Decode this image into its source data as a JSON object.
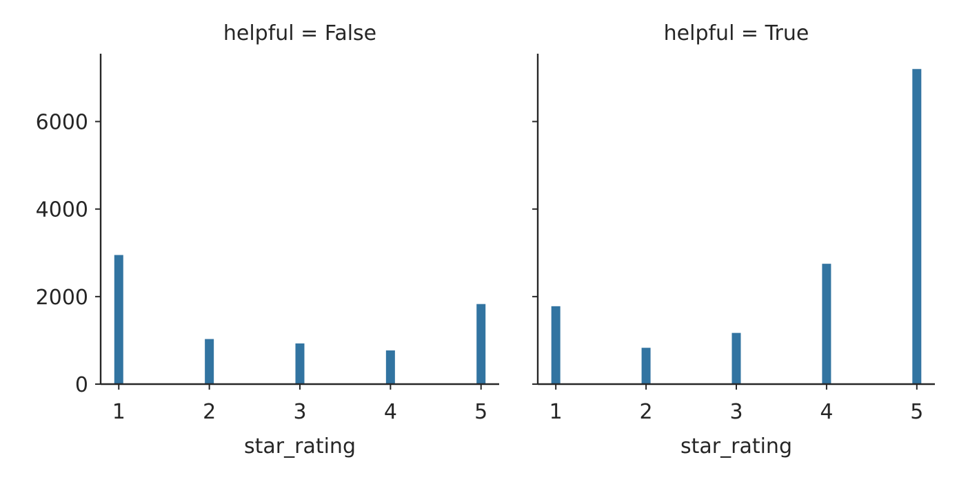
{
  "chart_data": [
    {
      "type": "bar",
      "title": "helpful = False",
      "xlabel": "star_rating",
      "ylabel": "",
      "x_ticks": [
        1,
        2,
        3,
        4,
        5
      ],
      "y_ticks": [
        0,
        2000,
        4000,
        6000
      ],
      "xlim": [
        0.8,
        5.2
      ],
      "ylim": [
        0,
        7550
      ],
      "y_tick_labels_shown": true,
      "series": [
        {
          "x": [
            1,
            2,
            3,
            4,
            5
          ],
          "values": [
            2950,
            1030,
            930,
            770,
            1830
          ]
        }
      ],
      "grid": false,
      "color": "#3274a1"
    },
    {
      "type": "bar",
      "title": "helpful = True",
      "xlabel": "star_rating",
      "ylabel": "",
      "x_ticks": [
        1,
        2,
        3,
        4,
        5
      ],
      "y_ticks": [
        0,
        2000,
        4000,
        6000
      ],
      "xlim": [
        0.8,
        5.2
      ],
      "ylim": [
        0,
        7550
      ],
      "y_tick_labels_shown": false,
      "series": [
        {
          "x": [
            1,
            2,
            3,
            4,
            5
          ],
          "values": [
            1780,
            830,
            1170,
            2750,
            7200
          ]
        }
      ],
      "grid": false,
      "color": "#3274a1"
    }
  ]
}
